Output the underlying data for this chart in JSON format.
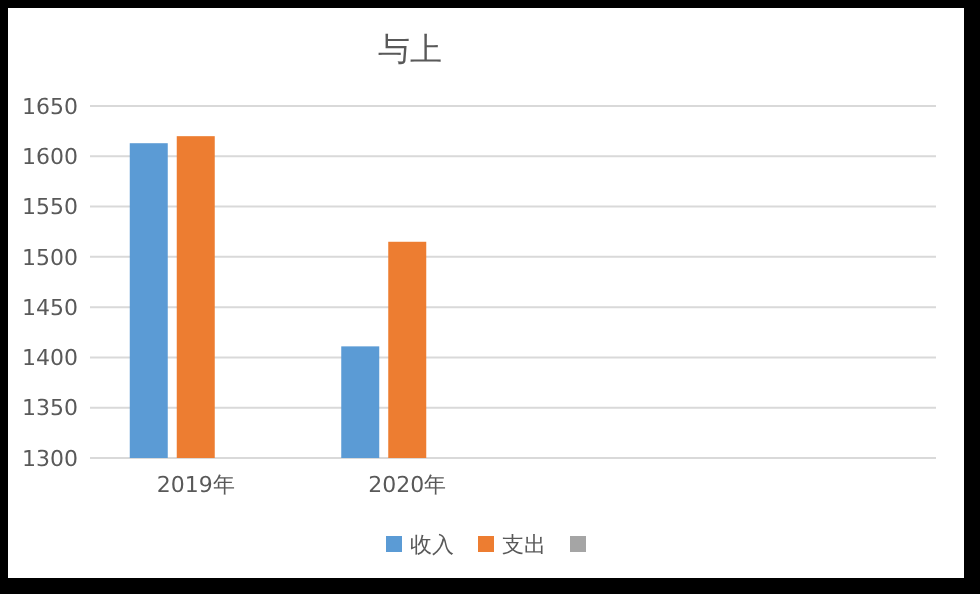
{
  "chart_data": {
    "type": "bar",
    "title": "与上",
    "categories": [
      "2019年",
      "2020年",
      null,
      null
    ],
    "series": [
      {
        "name": "收入",
        "color": "#5b9bd5",
        "values": [
          1613,
          1411,
          null,
          null
        ]
      },
      {
        "name": "支出",
        "color": "#ed7d31",
        "values": [
          1620,
          1515,
          null,
          null
        ]
      },
      {
        "color": "#a5a5a5",
        "values": [
          null,
          null,
          null,
          null
        ]
      }
    ],
    "ylim": [
      1300,
      1650
    ],
    "yticks": [
      1300,
      1350,
      1400,
      1450,
      1500,
      1550,
      1600,
      1650
    ],
    "grid": "y",
    "legend": "bottom"
  }
}
